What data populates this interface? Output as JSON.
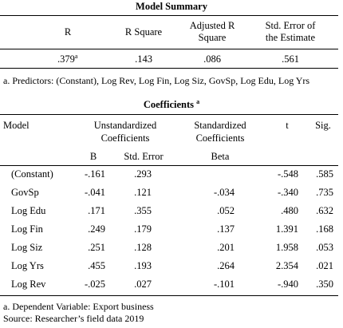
{
  "model_summary": {
    "title": "Model Summary",
    "headers": {
      "r": "R",
      "r_square": "R Square",
      "adj_r_line1": "Adjusted R",
      "adj_r_line2": "Square",
      "std_err_line1": "Std. Error of",
      "std_err_line2": "the Estimate"
    },
    "row": {
      "r": ".379",
      "r_sup": "a",
      "r_square": ".143",
      "adj_r": ".086",
      "std_err": ".561"
    },
    "footnote": "a. Predictors: (Constant), Log Rev, Log Fin, Log Siz, GovSp, Log Edu, Log Yrs"
  },
  "coefficients": {
    "title": "Coefficients",
    "title_sup": "a",
    "headers": {
      "model": "Model",
      "unstd_line1": "Unstandardized",
      "unstd_line2": "Coefficients",
      "std_line1": "Standardized",
      "std_line2": "Coefficients",
      "t": "t",
      "sig": "Sig.",
      "b": "B",
      "std_error": "Std. Error",
      "beta": "Beta"
    },
    "rows": [
      {
        "name": "(Constant)",
        "b": "-.161",
        "se": ".293",
        "beta": "",
        "t": "-.548",
        "sig": ".585"
      },
      {
        "name": "GovSp",
        "b": "-.041",
        "se": ".121",
        "beta": "-.034",
        "t": "-.340",
        "sig": ".735"
      },
      {
        "name": "Log Edu",
        "b": ".171",
        "se": ".355",
        "beta": ".052",
        "t": ".480",
        "sig": ".632"
      },
      {
        "name": "Log Fin",
        "b": ".249",
        "se": ".179",
        "beta": ".137",
        "t": "1.391",
        "sig": ".168"
      },
      {
        "name": "Log Siz",
        "b": ".251",
        "se": ".128",
        "beta": ".201",
        "t": "1.958",
        "sig": ".053"
      },
      {
        "name": "Log Yrs",
        "b": ".455",
        "se": ".193",
        "beta": ".264",
        "t": "2.354",
        "sig": ".021"
      },
      {
        "name": "Log Rev",
        "b": "-.025",
        "se": ".027",
        "beta": "-.101",
        "t": "-.940",
        "sig": ".350"
      }
    ],
    "footnote": "a. Dependent Variable: Export business",
    "source": "Source: Researcher’s field data 2019"
  }
}
